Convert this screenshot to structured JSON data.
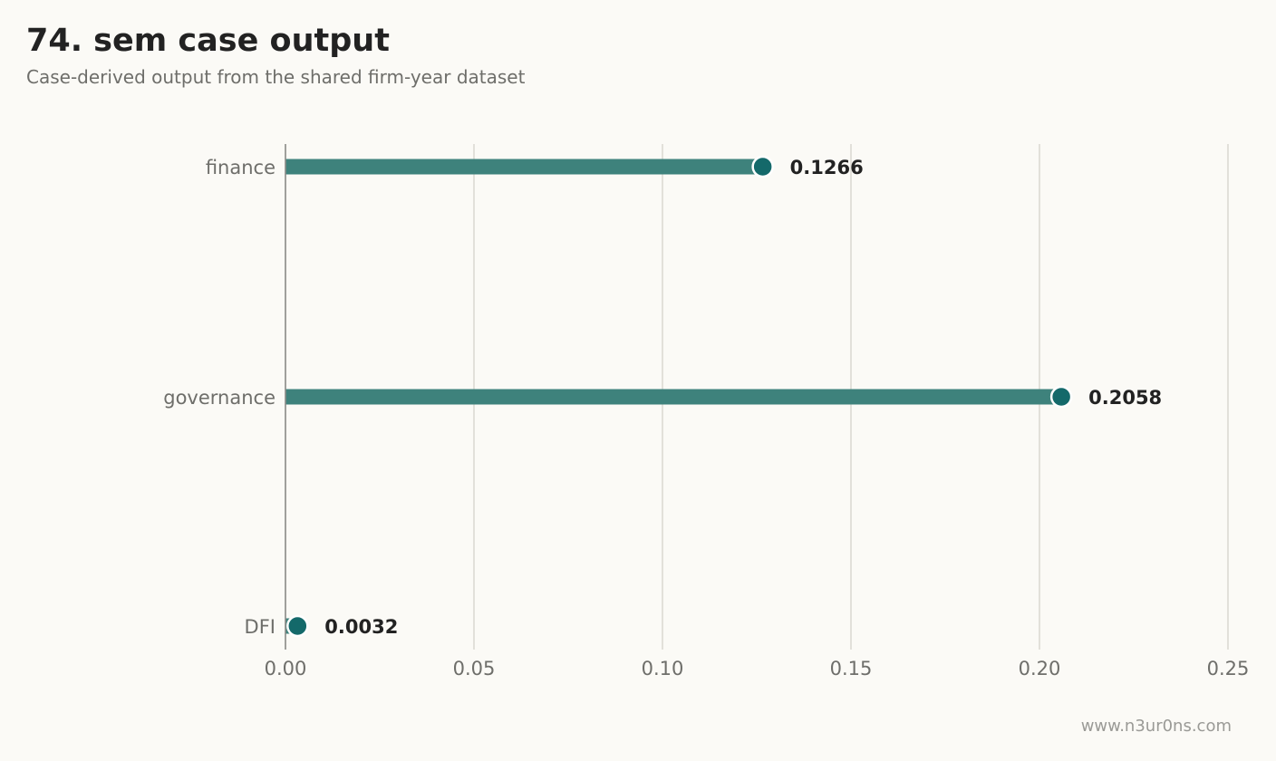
{
  "header": {
    "title": "74. sem case output",
    "subtitle": "Case-derived output from the shared firm-year dataset"
  },
  "footer": {
    "source": "www.n3ur0ns.com"
  },
  "colors": {
    "background": "#fbfaf6",
    "bar": "#3e827c",
    "point": "#14696a",
    "grid": "#dcdad4",
    "axis": "#8a8a86",
    "tick_text": "#6e6e6a",
    "value_text": "#222222"
  },
  "chart_data": {
    "type": "bar",
    "orientation": "horizontal",
    "style": "lollipop",
    "categories": [
      "finance",
      "governance",
      "DFI"
    ],
    "values": [
      0.1266,
      0.2058,
      0.0032
    ],
    "value_labels": [
      "0.1266",
      "0.2058",
      "0.0032"
    ],
    "xlim": [
      0,
      0.25
    ],
    "xticks": [
      0.0,
      0.05,
      0.1,
      0.15,
      0.2,
      0.25
    ],
    "xtick_labels": [
      "0.00",
      "0.05",
      "0.10",
      "0.15",
      "0.20",
      "0.25"
    ],
    "xlabel": "",
    "ylabel": "",
    "grid": "vertical",
    "legend": "none"
  }
}
